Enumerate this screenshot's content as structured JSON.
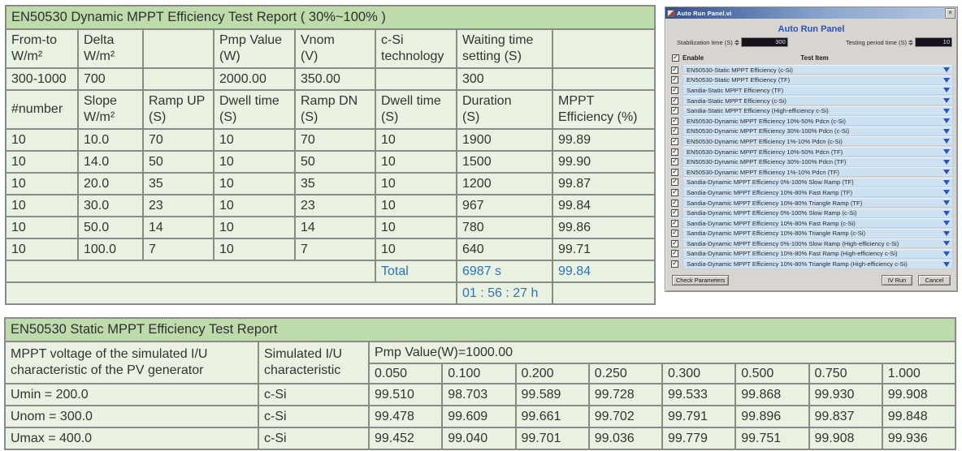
{
  "colors": {
    "table_title_green": "#bedcab",
    "table_cell_green": "#e9f1e1",
    "table_border_gray": "#8a8a8a",
    "accent_blue_text": "#2e73b8",
    "dialog_background": "#d8d5d0",
    "dialog_item_blue": "#cde1f0",
    "dropdown_triangle_blue": "#2b50c8",
    "panel_title_blue": "#2a52c0"
  },
  "dynamic_report": {
    "title": "EN50530 Dynamic MPPT Efficiency Test Report ( 30%~100% )",
    "param_headers": [
      "From-to\nW/m²",
      "Delta\nW/m²",
      "",
      "Pmp Value\n(W)",
      "Vnom\n(V)",
      "c-Si\ntechnology",
      "Waiting time\nsetting (S)",
      ""
    ],
    "param_values": [
      "300-1000",
      "700",
      "",
      "2000.00",
      "350.00",
      "",
      "300",
      ""
    ],
    "result_headers": [
      "#number",
      "Slope\nW/m²",
      "Ramp UP\n(S)",
      "Dwell time\n(S)",
      "Ramp DN\n(S)",
      "Dwell time\n(S)",
      "Duration\n(S)",
      "MPPT\nEfficiency (%)"
    ],
    "rows": [
      [
        "10",
        "10.0",
        "70",
        "10",
        "70",
        "10",
        "1900",
        "99.89"
      ],
      [
        "10",
        "14.0",
        "50",
        "10",
        "50",
        "10",
        "1500",
        "99.90"
      ],
      [
        "10",
        "20.0",
        "35",
        "10",
        "35",
        "10",
        "1200",
        "99.87"
      ],
      [
        "10",
        "30.0",
        "23",
        "10",
        "23",
        "10",
        "967",
        "99.84"
      ],
      [
        "10",
        "50.0",
        "14",
        "10",
        "14",
        "10",
        "780",
        "99.86"
      ],
      [
        "10",
        "100.0",
        "7",
        "10",
        "7",
        "10",
        "640",
        "99.71"
      ]
    ],
    "total_label": "Total",
    "total_duration": "6987 s",
    "total_efficiency": "99.84",
    "total_time": "01 : 56 : 27 h"
  },
  "static_report": {
    "title": "EN50530 Static MPPT Efficiency Test Report",
    "voltage_header": "MPPT voltage of the simulated I/U\ncharacteristic of the PV generator",
    "simulated_header": "Simulated I/U\ncharacteristic",
    "pmp_header": "Pmp Value(W)=1000.00",
    "load_levels": [
      "0.050",
      "0.100",
      "0.200",
      "0.250",
      "0.300",
      "0.500",
      "0.750",
      "1.000"
    ],
    "rows": [
      {
        "voltage": "Umin = 200.0",
        "tech": "c-Si",
        "values": [
          "99.510",
          "98.703",
          "99.589",
          "99.728",
          "99.533",
          "99.868",
          "99.930",
          "99.908"
        ]
      },
      {
        "voltage": "Unom = 300.0",
        "tech": "c-Si",
        "values": [
          "99.478",
          "99.609",
          "99.661",
          "99.702",
          "99.791",
          "99.896",
          "99.837",
          "99.848"
        ]
      },
      {
        "voltage": "Umax = 400.0",
        "tech": "c-Si",
        "values": [
          "99.452",
          "99.040",
          "99.701",
          "99.036",
          "99.779",
          "99.751",
          "99.908",
          "99.936"
        ]
      }
    ]
  },
  "dialog": {
    "window_title": "Auto Run Panel.vi",
    "close_glyph": "×",
    "panel_title": "Auto Run Panel",
    "stabilization_label": "Stabilization time (S)",
    "stabilization_value": "300",
    "testing_label": "Testing period time (S)",
    "testing_value": "10",
    "enable_label": "Enable",
    "test_item_label": "Test Item",
    "check_glyph": "✓",
    "items": [
      "EN50530-Static MPPT Efficiency (c-Si)",
      "EN50530-Static MPPT Efficiency (TF)",
      "Sandia-Static MPPT Efficiency (TF)",
      "Sandia-Static MPPT Efficiency (c-Si)",
      "Sandia-Static MPPT Efficiency (High-efficiency c-Si)",
      "EN50530-Dynamic MPPT Efficiency 10%-50% Pdcn (c-Si)",
      "EN50530-Dynamic MPPT Efficiency 30%-100% Pdcn (c-Si)",
      "EN50530-Dynamic MPPT Efficiency 1%-10% Pdcn (c-Si)",
      "EN50530-Dynamic MPPT Efficiency 10%-50% Pdcn (TF)",
      "EN50530-Dynamic MPPT Efficiency 30%-100% Pdcn (TF)",
      "EN50530-Dynamic MPPT Efficiency 1%-10% Pdcn (TF)",
      "Sandia-Dynamic MPPT Efficiency 0%-100% Slow Ramp (TF)",
      "Sandia-Dynamic MPPT Efficiency 10%-80% Fast Ramp (TF)",
      "Sandia-Dynamic MPPT Efficiency 10%-80% Triangle Ramp (TF)",
      "Sandia-Dynamic MPPT Efficiency 0%-100% Slow Ramp (c-Si)",
      "Sandia-Dynamic MPPT Efficiency 10%-80% Fast Ramp (c-Si)",
      "Sandia-Dynamic MPPT Efficiency 10%-80% Triangle Ramp (c-Si)",
      "Sandia-Dynamic MPPT Efficiency 0%-100% Slow Ramp (High-efficiency c-Si)",
      "Sandia-Dynamic MPPT Efficiency 10%-80% Fast Ramp (High-efficiency c-Si)",
      "Sandia-Dynamic MPPT Efficiency 10%-80% Triangle Ramp (High-efficiency c-Si)"
    ],
    "buttons": {
      "check": "Check Parameters",
      "run": "IV Run",
      "cancel": "Cancel"
    }
  }
}
